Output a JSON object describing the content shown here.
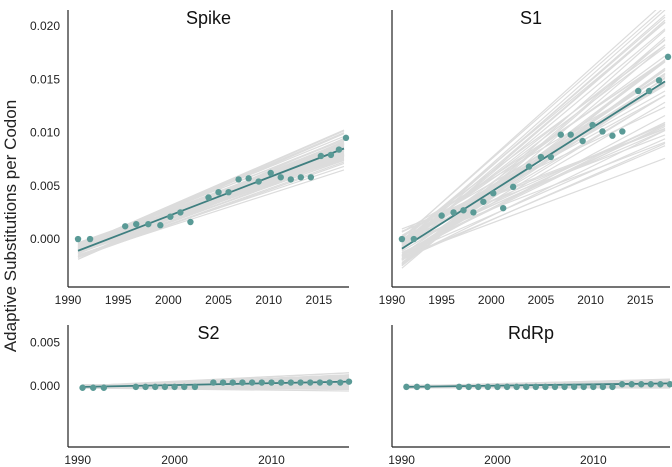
{
  "figure": {
    "ylabel": "Adaptive Substitutions per Codon",
    "bootstrap_color": "#dcdcdc",
    "point_color": "#5a9a96",
    "line_color": "#3f7f80",
    "axis_color": "#222222"
  },
  "chart_data": [
    {
      "type": "scatter",
      "title": "Spike",
      "xlim": [
        1990,
        2018
      ],
      "ylim": [
        -0.0045,
        0.0215
      ],
      "xticks": [
        1990,
        1995,
        2000,
        2005,
        2010,
        2015
      ],
      "xtick_labels": [
        "1990",
        "1995",
        "2000",
        "2005",
        "2010",
        "2015"
      ],
      "yticks": [
        0.0,
        0.005,
        0.01,
        0.015,
        0.02
      ],
      "ytick_labels": [
        "0.000",
        "0.005",
        "0.010",
        "0.015",
        "0.020"
      ],
      "fit": {
        "x": [
          1991,
          2017.5
        ],
        "y": [
          -0.0011,
          0.0085
        ]
      },
      "bootstrap": {
        "n": 60,
        "intercept_spread": 0.0007,
        "slope_spread": 0.16
      },
      "points": {
        "x": [
          1991,
          1992.2,
          1995.7,
          1996.8,
          1998,
          1999.2,
          2000.2,
          2001.2,
          2002.2,
          2004,
          2005,
          2006,
          2007,
          2008,
          2009,
          2010.2,
          2011.2,
          2012.2,
          2013.2,
          2014.2,
          2015.2,
          2016.2,
          2017,
          2017.7
        ],
        "y": [
          0.0,
          0.0,
          0.0012,
          0.0014,
          0.0014,
          0.0013,
          0.0021,
          0.0025,
          0.0016,
          0.0039,
          0.0044,
          0.0044,
          0.0056,
          0.0057,
          0.0054,
          0.0062,
          0.0058,
          0.0056,
          0.0058,
          0.0058,
          0.0078,
          0.0079,
          0.0084,
          0.0095
        ]
      }
    },
    {
      "type": "scatter",
      "title": "S1",
      "xlim": [
        1990,
        2018
      ],
      "ylim": [
        -0.0045,
        0.0215
      ],
      "xticks": [
        1990,
        1995,
        2000,
        2005,
        2010,
        2015
      ],
      "xtick_labels": [
        "1990",
        "1995",
        "2000",
        "2005",
        "2010",
        "2015"
      ],
      "yticks": [
        0.0,
        0.005,
        0.01,
        0.015,
        0.02
      ],
      "ytick_labels": [],
      "fit": {
        "x": [
          1991,
          2017.5
        ],
        "y": [
          -0.0009,
          0.0148
        ]
      },
      "bootstrap": {
        "n": 60,
        "intercept_spread": 0.0015,
        "slope_spread": 0.42
      },
      "points": {
        "x": [
          1991,
          1992.2,
          1995,
          1996.2,
          1997.2,
          1998.2,
          1999.2,
          2000.2,
          2001.2,
          2002.2,
          2003.8,
          2005,
          2006,
          2007,
          2008,
          2009.2,
          2010.2,
          2011.2,
          2012.2,
          2013.2,
          2014.8,
          2015.9,
          2016.9,
          2017.8
        ],
        "y": [
          0.0,
          0.0,
          0.0022,
          0.0025,
          0.0027,
          0.0025,
          0.0035,
          0.0043,
          0.0029,
          0.0049,
          0.0068,
          0.0077,
          0.0077,
          0.0098,
          0.0098,
          0.0092,
          0.0107,
          0.0101,
          0.0097,
          0.0101,
          0.0139,
          0.0139,
          0.0149,
          0.0171
        ]
      }
    },
    {
      "type": "scatter",
      "title": "S2",
      "xlim": [
        1989,
        2018
      ],
      "ylim": [
        -0.007,
        0.007
      ],
      "xticks": [
        1990,
        2000,
        2010
      ],
      "xtick_labels": [
        "1990",
        "2000",
        "2010"
      ],
      "yticks": [
        0.0,
        0.005
      ],
      "ytick_labels": [
        "0.000",
        "0.005"
      ],
      "fit": {
        "x": [
          1990.5,
          2018
        ],
        "y": [
          -0.0001,
          0.0005
        ]
      },
      "bootstrap": {
        "n": 50,
        "intercept_spread": 0.0002,
        "slope_spread": 1.6
      },
      "points": {
        "x": [
          1990.5,
          1991.6,
          1992.7,
          1996,
          1997,
          1998,
          1999,
          2000,
          2001,
          2002.1,
          2004,
          2005,
          2006,
          2007,
          2008,
          2009,
          2010,
          2011,
          2012,
          2013,
          2014,
          2015,
          2016,
          2017.1,
          2018
        ],
        "y": [
          -0.0002,
          -0.0002,
          -0.0002,
          -0.0001,
          -0.0001,
          -0.0001,
          -0.0001,
          -0.0001,
          -0.0001,
          -0.0001,
          0.0004,
          0.0004,
          0.0004,
          0.0004,
          0.0004,
          0.0004,
          0.0004,
          0.0004,
          0.0004,
          0.0004,
          0.0004,
          0.0004,
          0.0004,
          0.0004,
          0.0005
        ]
      }
    },
    {
      "type": "scatter",
      "title": "RdRp",
      "xlim": [
        1989,
        2018
      ],
      "ylim": [
        -0.007,
        0.007
      ],
      "xticks": [
        1990,
        2000,
        2010
      ],
      "xtick_labels": [
        "1990",
        "2000",
        "2010"
      ],
      "yticks": [
        0.0,
        0.005
      ],
      "ytick_labels": [],
      "fit": {
        "x": [
          1990.5,
          2018
        ],
        "y": [
          -0.0001,
          0.0003
        ]
      },
      "bootstrap": {
        "n": 50,
        "intercept_spread": 0.00015,
        "slope_spread": 1.2
      },
      "points": {
        "x": [
          1990.5,
          1991.6,
          1992.7,
          1996,
          1997,
          1998,
          1999,
          2000,
          2001,
          2002,
          2003,
          2004,
          2005,
          2006,
          2007,
          2008,
          2009,
          2010,
          2011,
          2012,
          2013,
          2014,
          2015,
          2016,
          2017,
          2018
        ],
        "y": [
          -0.0001,
          -0.0001,
          -0.0001,
          -0.0001,
          -0.0001,
          -0.0001,
          -0.0001,
          -0.0001,
          -0.0001,
          -0.0001,
          -0.0001,
          -0.0001,
          -0.0001,
          -0.0001,
          -0.0001,
          -0.0001,
          -0.0001,
          -0.0001,
          -0.0001,
          -0.0001,
          0.0002,
          0.0002,
          0.0002,
          0.0002,
          0.0002,
          0.0002
        ]
      }
    }
  ]
}
